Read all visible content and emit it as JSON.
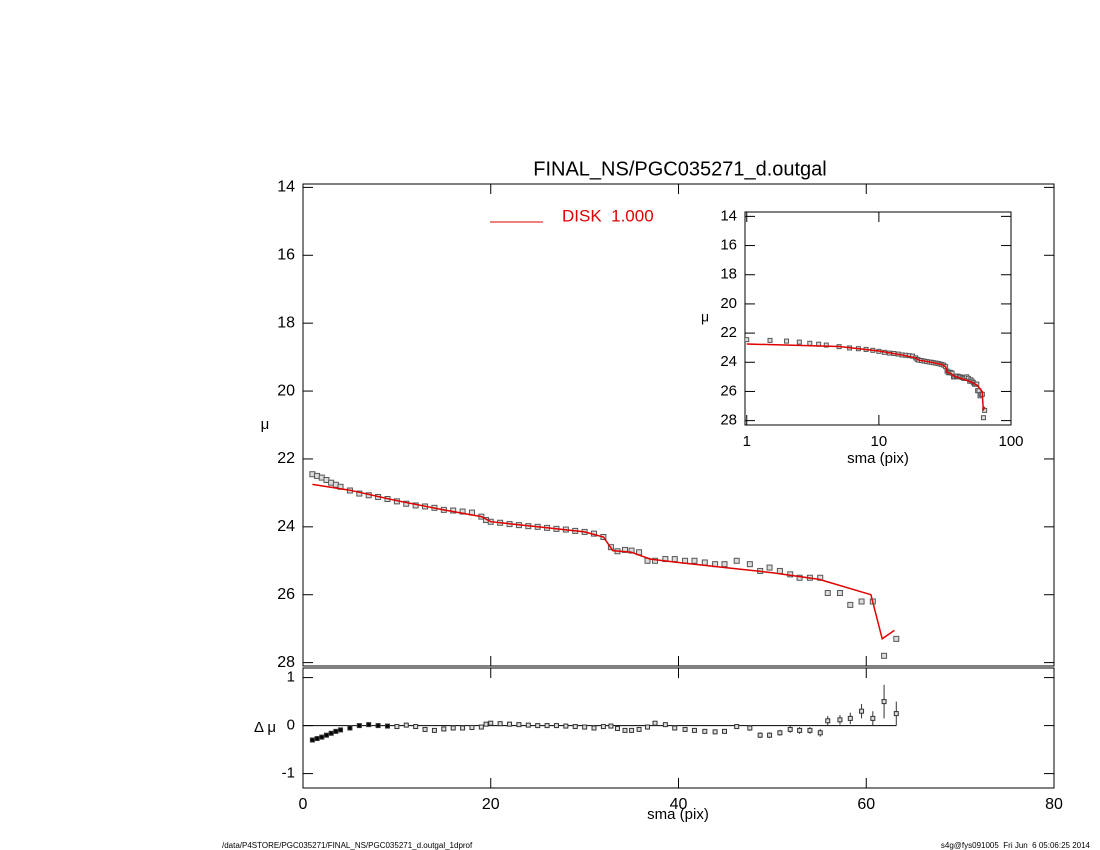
{
  "footer_left": "/data/P4STORE/PGC035271/FINAL_NS/PGC035271_d.outgal_1dprof",
  "footer_right": "s4g@fys091005  Fri Jun  6 05:06:25 2014",
  "chart_data": [
    {
      "type": "scatter",
      "title": "FINAL_NS/PGC035271_d.outgal",
      "ylabel": "μ",
      "x": [
        1.0,
        1.5,
        2.0,
        2.5,
        3.0,
        3.5,
        4.0,
        5.0,
        6.0,
        7.0,
        8.0,
        9.0,
        10.0,
        11.0,
        12.0,
        13.0,
        14.0,
        15.0,
        16.0,
        17.0,
        18.0,
        19.0,
        19.5,
        20.0,
        21.0,
        22.0,
        23.0,
        24.0,
        25.0,
        26.0,
        27.0,
        28.0,
        29.0,
        30.0,
        31.0,
        32.0,
        32.8,
        33.5,
        34.3,
        35.0,
        35.8,
        36.7,
        37.5,
        38.6,
        39.6,
        40.7,
        41.7,
        42.8,
        43.9,
        44.9,
        46.2,
        47.6,
        48.7,
        49.7,
        50.8,
        51.9,
        52.9,
        54.0,
        55.1,
        55.9,
        57.2,
        58.3,
        59.5,
        60.7,
        61.9,
        63.2
      ],
      "values": [
        22.45,
        22.5,
        22.55,
        22.62,
        22.7,
        22.76,
        22.82,
        22.93,
        23.02,
        23.07,
        23.12,
        23.18,
        23.25,
        23.32,
        23.37,
        23.4,
        23.44,
        23.5,
        23.52,
        23.55,
        23.58,
        23.7,
        23.8,
        23.85,
        23.88,
        23.92,
        23.95,
        23.98,
        24.0,
        24.03,
        24.06,
        24.08,
        24.12,
        24.15,
        24.2,
        24.3,
        24.6,
        24.72,
        24.68,
        24.7,
        24.75,
        25.0,
        25.0,
        24.95,
        24.95,
        25.0,
        25.0,
        25.05,
        25.1,
        25.1,
        25.0,
        25.1,
        25.3,
        25.2,
        25.3,
        25.4,
        25.5,
        25.5,
        25.5,
        25.95,
        25.95,
        26.3,
        26.2,
        26.2,
        27.8,
        27.3
      ],
      "series": [
        {
          "name": "DISK  1.000",
          "color": "#e00000",
          "x": [
            1,
            5,
            10,
            15,
            19,
            20,
            25,
            30,
            32,
            33,
            35,
            37,
            40,
            45,
            50,
            55,
            60.5,
            61.7,
            63
          ],
          "values": [
            22.75,
            22.92,
            23.23,
            23.5,
            23.7,
            23.85,
            24.0,
            24.15,
            24.3,
            24.7,
            24.75,
            24.95,
            25.05,
            25.2,
            25.35,
            25.55,
            26.0,
            27.3,
            27.05
          ]
        }
      ],
      "xlim": [
        0,
        80
      ],
      "ylim": [
        28.1,
        13.9
      ],
      "yticks": [
        14,
        16,
        18,
        20,
        22,
        24,
        26,
        28
      ]
    },
    {
      "type": "line",
      "xlabel": "sma (pix)",
      "ylabel": "μ",
      "xlog": true,
      "xlim": [
        0.97,
        100
      ],
      "xticks": [
        1,
        10,
        100
      ],
      "ylim": [
        28.3,
        13.7
      ],
      "yticks": [
        14,
        16,
        18,
        20,
        22,
        24,
        26,
        28
      ]
    },
    {
      "type": "scatter",
      "xlabel": "sma (pix)",
      "ylabel": "Δ μ",
      "values": [
        -0.3,
        -0.27,
        -0.24,
        -0.2,
        -0.16,
        -0.12,
        -0.09,
        -0.05,
        0.0,
        0.02,
        0.0,
        -0.01,
        -0.02,
        0.01,
        -0.02,
        -0.08,
        -0.1,
        -0.07,
        -0.05,
        -0.05,
        -0.04,
        -0.03,
        0.03,
        0.05,
        0.04,
        0.03,
        0.02,
        0.01,
        0.0,
        0.0,
        0.0,
        -0.01,
        -0.02,
        -0.03,
        -0.05,
        -0.02,
        -0.01,
        -0.06,
        -0.1,
        -0.1,
        -0.08,
        -0.03,
        0.05,
        0.02,
        -0.05,
        -0.08,
        -0.1,
        -0.12,
        -0.13,
        -0.12,
        -0.02,
        -0.05,
        -0.2,
        -0.2,
        -0.15,
        -0.08,
        -0.1,
        -0.1,
        -0.15,
        0.1,
        0.12,
        0.15,
        0.3,
        0.15,
        0.5,
        0.25
      ],
      "errors": [
        0.01,
        0.01,
        0.01,
        0.01,
        0.01,
        0.01,
        0.01,
        0.01,
        0.01,
        0.01,
        0.01,
        0.01,
        0.01,
        0.01,
        0.01,
        0.01,
        0.01,
        0.01,
        0.01,
        0.01,
        0.01,
        0.01,
        0.02,
        0.02,
        0.02,
        0.02,
        0.02,
        0.02,
        0.02,
        0.02,
        0.02,
        0.02,
        0.02,
        0.02,
        0.02,
        0.02,
        0.03,
        0.03,
        0.03,
        0.03,
        0.03,
        0.04,
        0.04,
        0.04,
        0.04,
        0.04,
        0.04,
        0.05,
        0.05,
        0.05,
        0.05,
        0.06,
        0.06,
        0.06,
        0.06,
        0.07,
        0.07,
        0.07,
        0.08,
        0.1,
        0.1,
        0.12,
        0.15,
        0.15,
        0.35,
        0.25
      ],
      "xlim": [
        0,
        80
      ],
      "xticks": [
        0,
        20,
        40,
        60,
        80
      ],
      "ylim": [
        -1.3,
        1.2
      ],
      "yticks": [
        -1,
        0,
        1
      ]
    }
  ]
}
